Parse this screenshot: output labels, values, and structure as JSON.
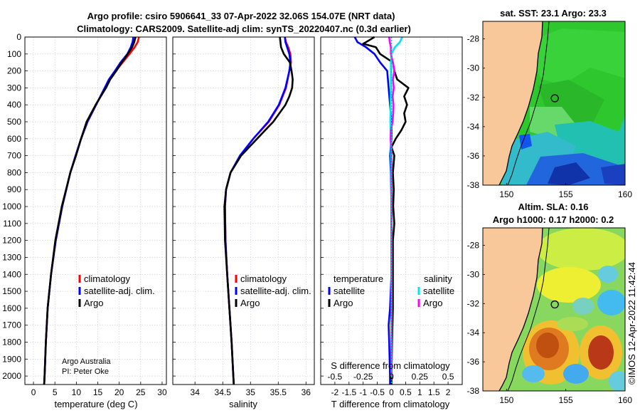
{
  "header": {
    "title_line1": "Argo profile: csiro 5906641_33 07-Apr-2022 32.06S 154.07E (NRT data)",
    "title_line2": "Climatology: CARS2009. Satellite-adj clim: synTS_20220407.nc (0.3d earlier)"
  },
  "depth_ticks": [
    "0",
    "100",
    "200",
    "300",
    "400",
    "500",
    "600",
    "700",
    "800",
    "900",
    "1000",
    "1100",
    "1200",
    "1300",
    "1400",
    "1500",
    "1600",
    "1700",
    "1800",
    "1900",
    "2000"
  ],
  "chart_data": [
    {
      "type": "line",
      "id": "temperature",
      "xlabel": "temperature (deg C)",
      "ylabel": "depth (m)",
      "xlim": [
        -2,
        31
      ],
      "ylim": [
        0,
        2050
      ],
      "xticks": [
        "0",
        "5",
        "10",
        "15",
        "20",
        "25",
        "30"
      ],
      "legend": [
        "climatology",
        "satellite-adj. clim.",
        "Argo"
      ],
      "credit": [
        "Argo Australia",
        "PI: Peter Oke"
      ],
      "series": [
        {
          "name": "climatology",
          "color": "#ff0000",
          "depth": [
            0,
            30,
            60,
            100,
            150,
            200,
            250,
            300,
            400,
            500,
            600,
            700,
            800,
            1000,
            1200,
            1400,
            1600,
            1800,
            2000,
            2050
          ],
          "values": [
            24.6,
            24.3,
            23.6,
            22.4,
            20.8,
            19.2,
            17.8,
            16.7,
            14.6,
            12.6,
            11.1,
            9.9,
            8.6,
            6.7,
            5.2,
            4.1,
            3.3,
            2.9,
            2.6,
            2.5
          ]
        },
        {
          "name": "satellite-adj. clim.",
          "color": "#0000ff",
          "depth": [
            0,
            30,
            60,
            100,
            150,
            200,
            250,
            300,
            400,
            500,
            600,
            700,
            800,
            1000,
            1200,
            1400,
            1600,
            1800,
            2000,
            2050
          ],
          "values": [
            23.3,
            23.1,
            22.7,
            21.9,
            20.3,
            19.0,
            17.6,
            16.6,
            14.6,
            12.6,
            11.1,
            9.8,
            8.6,
            6.7,
            5.2,
            4.1,
            3.3,
            2.9,
            2.6,
            2.5
          ]
        },
        {
          "name": "Argo",
          "color": "#000000",
          "depth": [
            0,
            30,
            60,
            100,
            150,
            200,
            250,
            300,
            400,
            500,
            600,
            700,
            800,
            1000,
            1200,
            1400,
            1600,
            1800,
            2000,
            2050
          ],
          "values": [
            23.8,
            23.5,
            23.0,
            22.0,
            20.6,
            19.3,
            17.9,
            16.9,
            14.5,
            12.4,
            11.1,
            9.9,
            8.6,
            6.6,
            5.1,
            4.1,
            3.3,
            2.9,
            2.6,
            2.5
          ]
        }
      ]
    },
    {
      "type": "line",
      "id": "salinity",
      "xlabel": "salinity",
      "xlim": [
        33.6,
        36.15
      ],
      "xticks": [
        "34",
        "34.5",
        "35",
        "35.5",
        "36"
      ],
      "legend": [
        "climatology",
        "satellite-adj. clim.",
        "Argo"
      ],
      "series": [
        {
          "name": "climatology",
          "color": "#ff0000",
          "depth": [
            0,
            30,
            60,
            100,
            150,
            200,
            300,
            400,
            500,
            600,
            700,
            800,
            900,
            1000,
            1200,
            1400,
            1600,
            1800,
            2000,
            2050
          ],
          "values": [
            35.62,
            35.64,
            35.68,
            35.72,
            35.73,
            35.7,
            35.64,
            35.52,
            35.33,
            35.05,
            34.82,
            34.64,
            34.56,
            34.54,
            34.55,
            34.58,
            34.62,
            34.66,
            34.69,
            34.7
          ]
        },
        {
          "name": "satellite-adj. clim.",
          "color": "#0000ff",
          "depth": [
            0,
            30,
            60,
            100,
            150,
            200,
            300,
            400,
            500,
            600,
            700,
            800,
            900,
            1000,
            1200,
            1400,
            1600,
            1800,
            2000,
            2050
          ],
          "values": [
            35.62,
            35.63,
            35.66,
            35.7,
            35.72,
            35.7,
            35.63,
            35.51,
            35.32,
            35.05,
            34.81,
            34.64,
            34.56,
            34.54,
            34.55,
            34.58,
            34.62,
            34.66,
            34.69,
            34.7
          ]
        },
        {
          "name": "Argo",
          "color": "#000000",
          "depth": [
            0,
            30,
            60,
            100,
            150,
            200,
            250,
            300,
            350,
            400,
            500,
            600,
            700,
            800,
            900,
            1000,
            1200,
            1400,
            1600,
            1800,
            2000,
            2050
          ],
          "values": [
            35.53,
            35.54,
            35.55,
            35.6,
            35.71,
            35.74,
            35.76,
            35.75,
            35.7,
            35.63,
            35.41,
            35.12,
            34.83,
            34.64,
            34.56,
            34.53,
            34.54,
            34.58,
            34.62,
            34.66,
            34.69,
            34.7
          ]
        }
      ]
    },
    {
      "type": "line",
      "id": "difference",
      "xlabel": "T difference from climatology",
      "xlabel2": "S difference from climatology",
      "xlim": [
        -2.5,
        2.5
      ],
      "xticks": [
        "-2",
        "-1.5",
        "-1",
        "-0.5",
        "0",
        "0.5",
        "1",
        "1.5",
        "2"
      ],
      "xticks_s": [
        "-0.5",
        "-0.25",
        "0",
        "0.25",
        "0.5"
      ],
      "legend_temperature_title": "temperature",
      "legend_salinity_title": "salinity",
      "legend_temperature": [
        "satellite",
        "Argo"
      ],
      "legend_salinity": [
        "satellite",
        "Argo"
      ],
      "series": [
        {
          "name": "temperature satellite",
          "color": "#0000ff",
          "depth": [
            0,
            30,
            60,
            100,
            150,
            200,
            300,
            400,
            500,
            600,
            700,
            800,
            1000,
            1200,
            1400,
            1600,
            1700,
            1800,
            2000,
            2050
          ],
          "values": [
            -1.3,
            -1.2,
            -0.9,
            -0.6,
            -0.4,
            -0.15,
            -0.1,
            -0.05,
            0,
            0,
            -0.05,
            -0.02,
            0,
            0,
            0,
            -0.05,
            -0.1,
            -0.08,
            -0.05,
            -0.05
          ]
        },
        {
          "name": "temperature Argo",
          "color": "#000000",
          "depth": [
            0,
            20,
            40,
            60,
            100,
            150,
            200,
            250,
            300,
            350,
            400,
            450,
            500,
            550,
            600,
            650,
            700,
            800,
            900,
            1000,
            1100,
            1200,
            1400,
            1600,
            1800,
            2000,
            2050
          ],
          "values": [
            -0.6,
            -0.8,
            -1.0,
            -0.55,
            -0.4,
            0.05,
            0.1,
            0.2,
            0.6,
            0.45,
            0.55,
            0.45,
            0.5,
            0.35,
            0.15,
            0,
            0.1,
            0.05,
            0.08,
            0.06,
            0.1,
            0.05,
            0.05,
            0.05,
            0.02,
            0,
            0
          ]
        },
        {
          "name": "salinity satellite",
          "color": "#00e5ee",
          "depth": [
            0,
            30,
            60,
            100,
            150,
            200,
            300,
            400,
            500,
            600,
            700,
            800,
            1000,
            1400,
            1800,
            2000
          ],
          "values": [
            0.38,
            0.3,
            0.12,
            0.0,
            -0.02,
            -0.02,
            -0.02,
            -0.03,
            -0.04,
            -0.02,
            -0.02,
            -0.01,
            0,
            0,
            0,
            0
          ]
        },
        {
          "name": "salinity Argo",
          "color": "#ff00ff",
          "depth": [
            0,
            30,
            60,
            100,
            150,
            200,
            250,
            300,
            350,
            400,
            450,
            500,
            550,
            600,
            650,
            700,
            800,
            1000,
            2000
          ],
          "values": [
            -0.08,
            -0.06,
            -0.02,
            -0.02,
            0.05,
            0.1,
            0.05,
            0.08,
            0.04,
            0.07,
            0.06,
            0.04,
            -0.02,
            -0.03,
            -0.01,
            0,
            0,
            0,
            0
          ]
        }
      ]
    }
  ],
  "maps": {
    "sst": {
      "title": "sat. SST: 23.1 Argo: 23.3",
      "xticks": [
        "150",
        "155",
        "160"
      ],
      "yticks": [
        "-28",
        "-30",
        "-32",
        "-34",
        "-36",
        "-38"
      ],
      "xlim": [
        148,
        160
      ],
      "ylim": [
        -38,
        -26.8
      ],
      "float_lon": 154.07,
      "float_lat": -32.06
    },
    "sla": {
      "title1": "Altim. SLA: 0.16",
      "title2": "Argo h1000: 0.17 h2000: 0.2",
      "xticks": [
        "150",
        "155",
        "160"
      ],
      "yticks": [
        "-28",
        "-30",
        "-32",
        "-34",
        "-36",
        "-38"
      ],
      "xlim": [
        148,
        160
      ],
      "ylim": [
        -38,
        -26.8
      ],
      "float_lon": 154.07,
      "float_lat": -32.06
    },
    "watermark": "©IMOS 12-Apr-2022 11:42:44"
  }
}
